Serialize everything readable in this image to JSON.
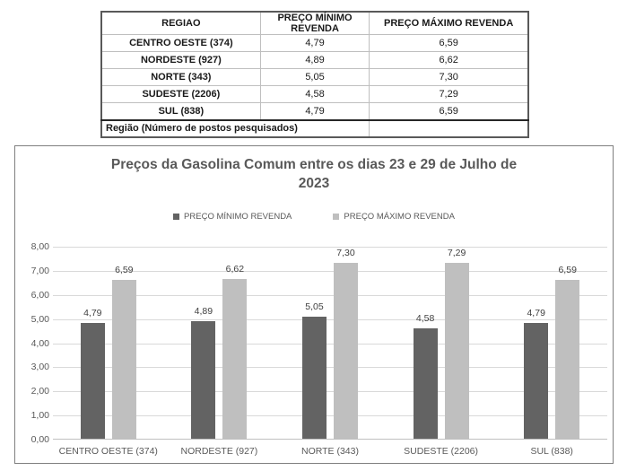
{
  "table": {
    "columns": [
      "REGIAO",
      "PREÇO MÍNIMO REVENDA",
      "PREÇO MÁXIMO REVENDA"
    ],
    "rows": [
      {
        "region": "CENTRO OESTE (374)",
        "min": "4,79",
        "max": "6,59"
      },
      {
        "region": "NORDESTE (927)",
        "min": "4,89",
        "max": "6,62"
      },
      {
        "region": "NORTE (343)",
        "min": "5,05",
        "max": "7,30"
      },
      {
        "region": "SUDESTE (2206)",
        "min": "4,58",
        "max": "7,29"
      },
      {
        "region": "SUL (838)",
        "min": "4,79",
        "max": "6,59"
      }
    ],
    "footer": "Região (Número de postos pesquisados)"
  },
  "chart": {
    "title_lines": [
      "Preços da Gasolina Comum entre os dias 23 e 29 de Julho de",
      "2023"
    ]
  },
  "chart_data": {
    "type": "bar",
    "title": "Preços da Gasolina Comum entre os dias 23 e 29 de Julho de 2023",
    "categories": [
      "CENTRO OESTE (374)",
      "NORDESTE (927)",
      "NORTE (343)",
      "SUDESTE (2206)",
      "SUL (838)"
    ],
    "series": [
      {
        "name": "PREÇO MÍNIMO REVENDA",
        "values": [
          4.79,
          4.89,
          5.05,
          4.58,
          4.79
        ],
        "color": "#636363"
      },
      {
        "name": "PREÇO MÁXIMO REVENDA",
        "values": [
          6.59,
          6.62,
          7.3,
          7.29,
          6.59
        ],
        "color": "#bfbfbf"
      }
    ],
    "ylim": [
      0,
      8
    ],
    "ytick_step": 1,
    "ytick_labels": [
      "0,00",
      "1,00",
      "2,00",
      "3,00",
      "4,00",
      "5,00",
      "6,00",
      "7,00",
      "8,00"
    ],
    "grid": true,
    "legend_position": "top",
    "xlabel": "",
    "ylabel": ""
  },
  "colors": {
    "min_bar": "#636363",
    "max_bar": "#bfbfbf",
    "gridline": "#d9d9d9",
    "axis_text": "#595959",
    "data_label_text": "#404040"
  }
}
